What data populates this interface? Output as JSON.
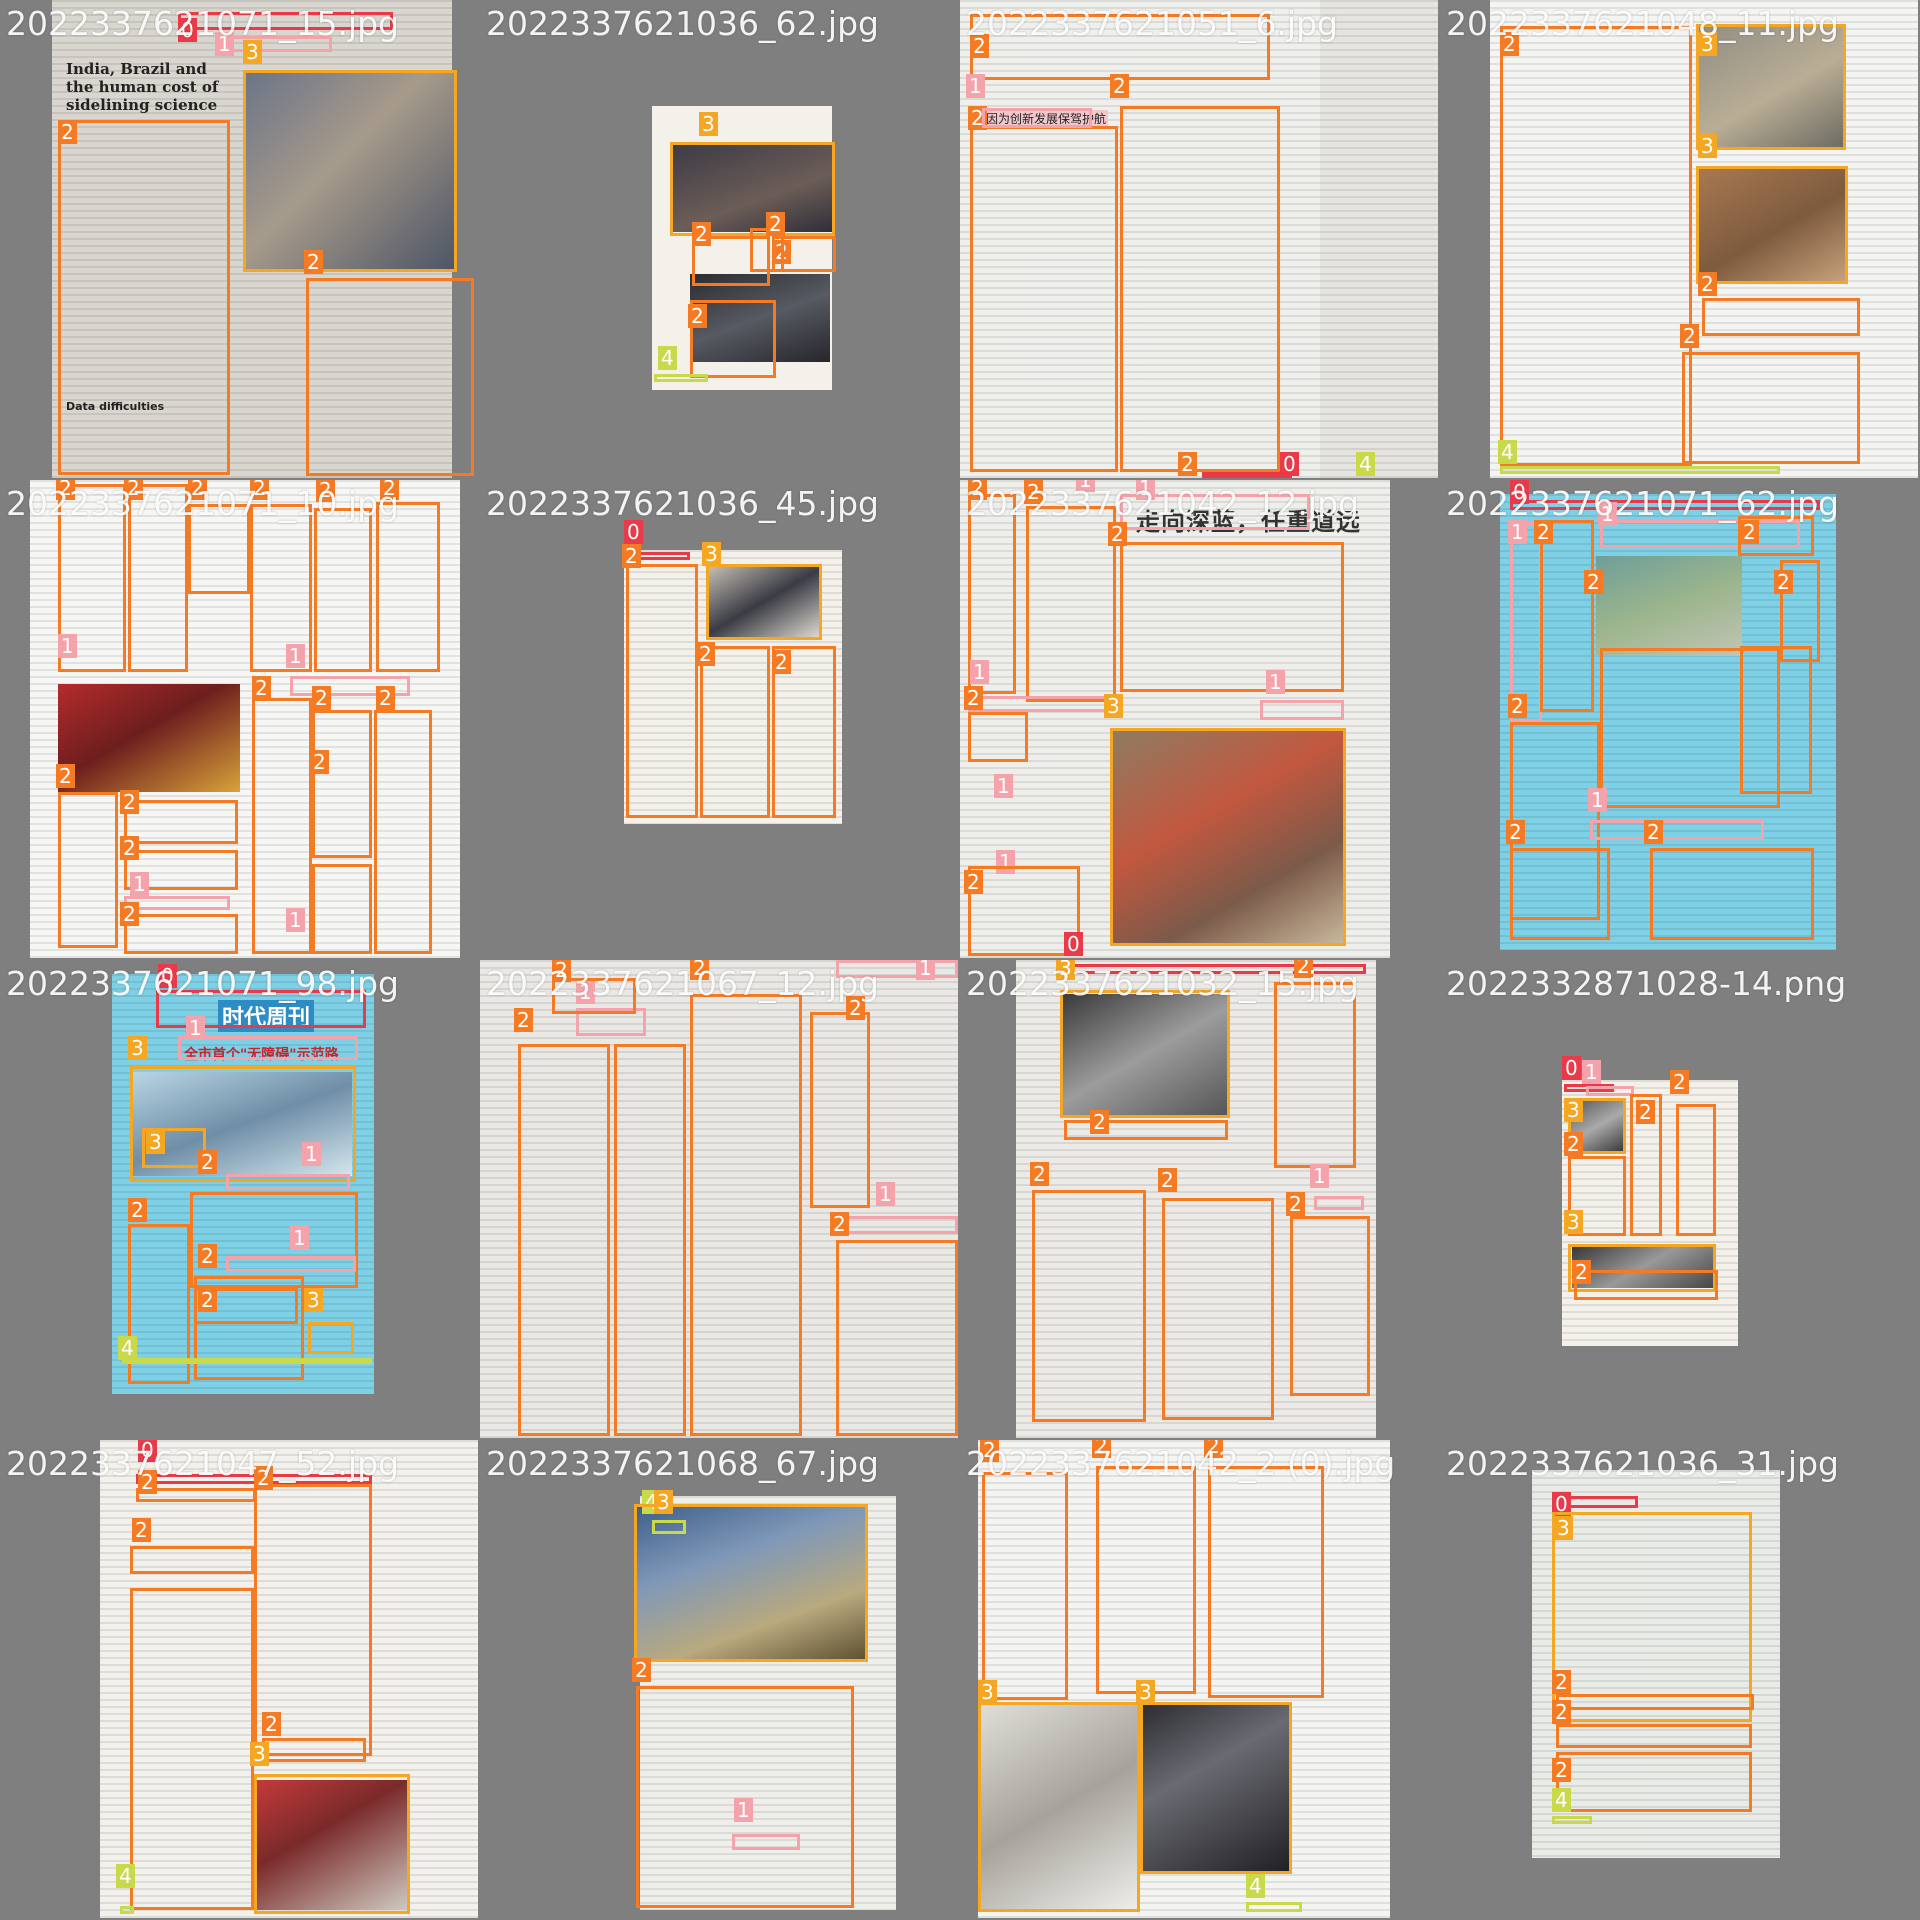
{
  "class_colors": {
    "0": "#e83a48",
    "1": "#f4a3aa",
    "2": "#f47a24",
    "3": "#f5a623",
    "4": "#c9d94a"
  },
  "nature_headline": "India, Brazil and the human cost of sidelining science",
  "nature_subsection": "Data difficulties",
  "tiles": [
    {
      "file": "2022337621071_15.jpg",
      "boxes": [
        [
          "0",
          1
        ],
        [
          "1",
          2
        ],
        [
          "3",
          1
        ],
        [
          "2",
          2
        ]
      ]
    },
    {
      "file": "2022337621036_62.jpg",
      "boxes": [
        [
          "3",
          1
        ],
        [
          "2",
          4
        ],
        [
          "4",
          1
        ]
      ]
    },
    {
      "file": "2022337621051_6.jpg",
      "boxes": [
        [
          "2",
          3
        ],
        [
          "1",
          1
        ],
        [
          "0",
          1
        ],
        [
          "4",
          1
        ]
      ]
    },
    {
      "file": "2022337621048_11.jpg",
      "boxes": [
        [
          "2",
          3
        ],
        [
          "3",
          2
        ],
        [
          "4",
          1
        ]
      ]
    },
    {
      "file": "2022337621071_10.jpg",
      "boxes": [
        [
          "2",
          20
        ],
        [
          "1",
          4
        ]
      ]
    },
    {
      "file": "2022337621036_45.jpg",
      "boxes": [
        [
          "0",
          1
        ],
        [
          "2",
          3
        ],
        [
          "3",
          1
        ]
      ]
    },
    {
      "file": "2022337621042_12.jpg",
      "boxes": [
        [
          "2",
          5
        ],
        [
          "1",
          6
        ],
        [
          "3",
          1
        ]
      ]
    },
    {
      "file": "2022337621071_62.jpg",
      "boxes": [
        [
          "0",
          1
        ],
        [
          "1",
          3
        ],
        [
          "2",
          7
        ]
      ]
    },
    {
      "file": "2022337621071_98.jpg",
      "boxes": [
        [
          "0",
          1
        ],
        [
          "1",
          3
        ],
        [
          "2",
          4
        ],
        [
          "3",
          3
        ],
        [
          "4",
          1
        ]
      ]
    },
    {
      "file": "2022337621067_12.jpg",
      "boxes": [
        [
          "2",
          5
        ],
        [
          "1",
          2
        ]
      ]
    },
    {
      "file": "2022337621032_15.jpg",
      "boxes": [
        [
          "0",
          1
        ],
        [
          "3",
          1
        ],
        [
          "2",
          6
        ],
        [
          "1",
          1
        ]
      ]
    },
    {
      "file": "2022332871028-14.png",
      "boxes": [
        [
          "0",
          1
        ],
        [
          "1",
          1
        ],
        [
          "2",
          4
        ],
        [
          "3",
          3
        ]
      ]
    },
    {
      "file": "2022337621047_52.jpg",
      "boxes": [
        [
          "0",
          1
        ],
        [
          "2",
          5
        ],
        [
          "3",
          1
        ],
        [
          "4",
          1
        ]
      ]
    },
    {
      "file": "2022337621068_67.jpg",
      "boxes": [
        [
          "4",
          1
        ],
        [
          "3",
          1
        ],
        [
          "2",
          1
        ],
        [
          "1",
          1
        ]
      ]
    },
    {
      "file": "2022337621042_2 (0).jpg",
      "boxes": [
        [
          "2",
          3
        ],
        [
          "3",
          2
        ],
        [
          "4",
          1
        ]
      ]
    },
    {
      "file": "2022337621036_31.jpg",
      "boxes": [
        [
          "0",
          1
        ],
        [
          "3",
          1
        ],
        [
          "2",
          3
        ],
        [
          "4",
          1
        ]
      ]
    }
  ],
  "cn": {
    "t3_head": "因为创新发展保驾护航",
    "t7_title": "走向深蓝，任重道远",
    "t9_title": "全市首个\"无障碍\"示范路",
    "t9_mast": "时代周刊"
  }
}
